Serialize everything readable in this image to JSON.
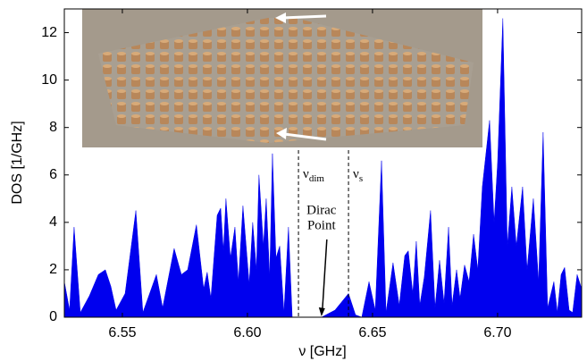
{
  "chart_data": {
    "type": "area",
    "xlabel": "ν [GHz]",
    "ylabel": "DOS [1/GHz]",
    "xlim": [
      6.5268,
      6.7336
    ],
    "ylim": [
      0,
      13
    ],
    "xticks": [
      {
        "value": 6.55,
        "label": "6.55"
      },
      {
        "value": 6.6,
        "label": "6.60"
      },
      {
        "value": 6.65,
        "label": "6.65"
      },
      {
        "value": 6.7,
        "label": "6.70"
      }
    ],
    "yticks": [
      0,
      2,
      4,
      6,
      8,
      10,
      12
    ],
    "color": "#0000ee",
    "x": [
      6.5268,
      6.5289,
      6.5307,
      6.5332,
      6.5368,
      6.5404,
      6.5432,
      6.5454,
      6.5475,
      6.5511,
      6.5554,
      6.5582,
      6.5636,
      6.5661,
      6.5707,
      6.5736,
      6.5761,
      6.5796,
      6.5825,
      6.5839,
      6.5854,
      6.5879,
      6.5893,
      6.5904,
      6.5914,
      6.5932,
      6.595,
      6.5964,
      6.5982,
      6.6007,
      6.6021,
      6.6036,
      6.6046,
      6.6064,
      6.6075,
      6.6089,
      6.61,
      6.6114,
      6.6129,
      6.6146,
      6.6164,
      6.6179,
      6.6296,
      6.635,
      6.6404,
      6.6432,
      6.6457,
      6.6486,
      6.6511,
      6.6536,
      6.6554,
      6.6582,
      6.6607,
      6.6629,
      6.6643,
      6.6661,
      6.6675,
      6.6689,
      6.6707,
      6.6732,
      6.675,
      6.6768,
      6.6786,
      6.6804,
      6.6818,
      6.6836,
      6.685,
      6.6868,
      6.6886,
      6.6904,
      6.6921,
      6.6939,
      6.6968,
      6.6986,
      6.7,
      6.7021,
      6.7039,
      6.7057,
      6.7075,
      6.71,
      6.7118,
      6.7143,
      6.7164,
      6.7182,
      6.72,
      6.7225,
      6.7239,
      6.7254,
      6.7268,
      6.7286,
      6.73,
      6.7318,
      6.7336
    ],
    "values": [
      1.5,
      0.3,
      3.8,
      0.2,
      0.9,
      1.8,
      2.0,
      1.3,
      0.3,
      1.0,
      4.5,
      0.2,
      1.8,
      0.4,
      2.9,
      1.8,
      2.0,
      3.9,
      1.2,
      1.9,
      0.8,
      4.3,
      4.6,
      2.8,
      5.0,
      2.5,
      3.8,
      1.5,
      4.7,
      1.4,
      4.0,
      2.0,
      6.0,
      3.0,
      5.0,
      1.7,
      6.9,
      2.5,
      3.0,
      0.2,
      3.8,
      0,
      0,
      0.3,
      1.0,
      0.1,
      0,
      1.5,
      0.3,
      6.6,
      0.2,
      2.3,
      0.5,
      2.6,
      2.8,
      1.0,
      3.2,
      0.5,
      1.7,
      4.5,
      0.4,
      2.4,
      0.6,
      3.8,
      0.5,
      2.0,
      0.8,
      2.2,
      1.5,
      3.5,
      2.0,
      5.5,
      8.3,
      4.0,
      6.5,
      12.6,
      3.0,
      5.5,
      3.0,
      5.5,
      2.0,
      5.0,
      1.5,
      7.8,
      0.4,
      1.5,
      0.2,
      1.8,
      2.1,
      0.3,
      0.2,
      1.8,
      1.2
    ],
    "annotations": [
      {
        "text": "ν",
        "subscript": "dim",
        "x": 6.6204
      },
      {
        "text": "ν",
        "subscript": "s",
        "x": 6.6404
      },
      {
        "text": [
          "Dirac",
          "Point"
        ],
        "x": 6.6296,
        "y": 0
      }
    ]
  }
}
